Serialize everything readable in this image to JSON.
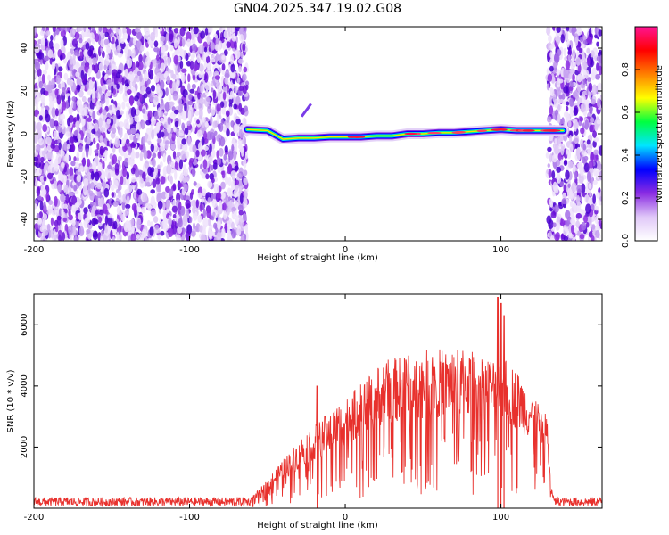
{
  "title": "GN04.2025.347.19.02.G08",
  "chart_data": [
    {
      "type": "heatmap",
      "panel": "spectrogram",
      "xlabel": "Height of straight line (km)",
      "ylabel": "Frequency (Hz)",
      "xlim": [
        -200,
        165
      ],
      "ylim": [
        -50,
        50
      ],
      "xticks": [
        -200,
        -100,
        0,
        100
      ],
      "yticks": [
        -40,
        -20,
        0,
        20,
        40
      ],
      "colorbar": {
        "label": "Normalized spectral amplitude",
        "range": [
          0.0,
          1.0
        ],
        "ticks": [
          0.0,
          0.2,
          0.4,
          0.6,
          0.8
        ],
        "colors": [
          "#ffffff",
          "#e0c8f8",
          "#8a2be2",
          "#0000ff",
          "#00e5ff",
          "#00ff40",
          "#ffff00",
          "#ff8000",
          "#ff0000",
          "#ff1493"
        ]
      },
      "noise_regions_km": [
        [
          -200,
          -63
        ],
        [
          130,
          165
        ]
      ],
      "signal_ridge": {
        "x": [
          -63,
          -50,
          -40,
          -30,
          -20,
          -10,
          0,
          10,
          20,
          30,
          40,
          50,
          60,
          70,
          80,
          90,
          100,
          110,
          120,
          130,
          140
        ],
        "y": [
          2,
          1.5,
          -2.5,
          -2,
          -2,
          -1.5,
          -1.5,
          -1.5,
          -1,
          -1,
          0,
          0,
          0.5,
          0.5,
          1,
          1.5,
          2,
          1.5,
          1.5,
          1.5,
          1.5
        ]
      }
    },
    {
      "type": "line",
      "panel": "snr",
      "xlabel": "Height of straight line (km)",
      "ylabel": "SNR (10 * v/v)",
      "xlim": [
        -200,
        165
      ],
      "ylim": [
        0,
        7000
      ],
      "xticks": [
        -200,
        -100,
        0,
        100
      ],
      "yticks": [
        2000,
        4000,
        6000
      ],
      "color": "#e8312d",
      "envelope": {
        "x": [
          -200,
          -63,
          -55,
          -45,
          -35,
          -25,
          -15,
          -5,
          5,
          15,
          25,
          35,
          45,
          55,
          65,
          75,
          85,
          95,
          105,
          115,
          120,
          125,
          130,
          132,
          135,
          165
        ],
        "y": [
          200,
          200,
          500,
          1000,
          1500,
          2000,
          2300,
          2700,
          3000,
          3400,
          3800,
          3900,
          4000,
          4100,
          4100,
          4100,
          4000,
          3900,
          3800,
          3300,
          3000,
          2600,
          2400,
          600,
          200,
          200
        ]
      },
      "spikes": [
        {
          "x": -18,
          "y": 4000
        },
        {
          "x": 98,
          "y": 6900
        },
        {
          "x": 100,
          "y": 6700
        },
        {
          "x": 102,
          "y": 6300
        }
      ]
    }
  ]
}
